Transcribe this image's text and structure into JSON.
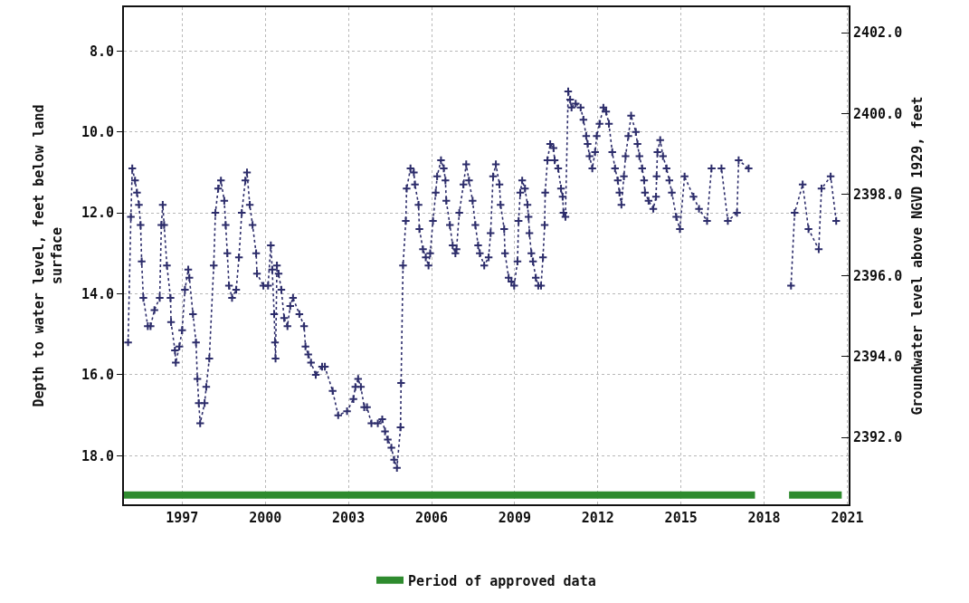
{
  "chart_data": {
    "type": "line",
    "xlabel": null,
    "ylabel": "Depth to water level, feet below land surface",
    "y2label": "Groundwater level above NGVD 1929, feet",
    "xlim": [
      1994.9,
      2021.05
    ],
    "xticks": [
      1997,
      2000,
      2003,
      2006,
      2009,
      2012,
      2015,
      2018,
      2021
    ],
    "ylim": [
      19.2,
      6.92
    ],
    "yticks": [
      {
        "value": 8,
        "label": "8.0"
      },
      {
        "value": 10,
        "label": "10.0"
      },
      {
        "value": 12,
        "label": "12.0"
      },
      {
        "value": 14,
        "label": "14.0"
      },
      {
        "value": 16,
        "label": "16.0"
      },
      {
        "value": 18,
        "label": "18.0"
      }
    ],
    "y2lim": [
      2390.35,
      2402.63
    ],
    "y2ticks": [
      {
        "value": 2392,
        "label": "2392.0"
      },
      {
        "value": 2394,
        "label": "2394.0"
      },
      {
        "value": 2396,
        "label": "2396.0"
      },
      {
        "value": 2398,
        "label": "2398.0"
      },
      {
        "value": 2400,
        "label": "2400.0"
      },
      {
        "value": 2402,
        "label": "2402.0"
      }
    ],
    "grid": true,
    "legend": "bottom",
    "series": [
      {
        "color": "#2d2d6b",
        "marker": "cross",
        "line_style": "dotted",
        "x": [
          1995.05,
          1995.15,
          1995.2,
          1995.3,
          1995.37,
          1995.44,
          1995.5,
          1995.54,
          1995.6,
          1995.76,
          1995.86,
          1996.0,
          1996.19,
          1996.25,
          1996.3,
          1996.35,
          1996.45,
          1996.58,
          1996.6,
          1996.74,
          1996.77,
          1996.9,
          1997.0,
          1997.1,
          1997.22,
          1997.26,
          1997.39,
          1997.5,
          1997.55,
          1997.6,
          1997.65,
          1997.81,
          1997.87,
          1997.98,
          1998.14,
          1998.2,
          1998.3,
          1998.4,
          1998.52,
          1998.57,
          1998.63,
          1998.69,
          1998.8,
          1998.95,
          1999.05,
          1999.15,
          1999.28,
          1999.34,
          1999.44,
          1999.54,
          1999.67,
          1999.7,
          1999.93,
          2000.1,
          2000.2,
          2000.25,
          2000.32,
          2000.35,
          2000.37,
          2000.42,
          2000.48,
          2000.58,
          2000.68,
          2000.8,
          2000.9,
          2001.0,
          2001.23,
          2001.4,
          2001.45,
          2001.55,
          2001.65,
          2001.82,
          2002.05,
          2002.15,
          2002.43,
          2002.63,
          2002.95,
          2003.18,
          2003.25,
          2003.35,
          2003.45,
          2003.57,
          2003.67,
          2003.83,
          2004.06,
          2004.22,
          2004.32,
          2004.42,
          2004.55,
          2004.65,
          2004.75,
          2004.88,
          2004.9,
          2004.97,
          2005.07,
          2005.1,
          2005.24,
          2005.36,
          2005.4,
          2005.53,
          2005.56,
          2005.69,
          2005.79,
          2005.89,
          2005.95,
          2006.05,
          2006.15,
          2006.2,
          2006.34,
          2006.44,
          2006.5,
          2006.53,
          2006.66,
          2006.76,
          2006.86,
          2006.9,
          2007.0,
          2007.15,
          2007.25,
          2007.35,
          2007.48,
          2007.58,
          2007.68,
          2007.74,
          2007.9,
          2008.06,
          2008.13,
          2008.22,
          2008.32,
          2008.45,
          2008.49,
          2008.62,
          2008.65,
          2008.78,
          2008.88,
          2008.98,
          2009.1,
          2009.14,
          2009.2,
          2009.27,
          2009.37,
          2009.46,
          2009.5,
          2009.53,
          2009.6,
          2009.66,
          2009.76,
          2009.85,
          2009.95,
          2010.02,
          2010.08,
          2010.1,
          2010.18,
          2010.28,
          2010.4,
          2010.44,
          2010.57,
          2010.67,
          2010.73,
          2010.76,
          2010.83,
          2010.93,
          2011.0,
          2011.05,
          2011.2,
          2011.38,
          2011.48,
          2011.58,
          2011.63,
          2011.7,
          2011.8,
          2011.9,
          2011.96,
          2012.06,
          2012.2,
          2012.3,
          2012.4,
          2012.52,
          2012.62,
          2012.72,
          2012.78,
          2012.85,
          2012.94,
          2013.0,
          2013.1,
          2013.2,
          2013.37,
          2013.43,
          2013.5,
          2013.6,
          2013.67,
          2013.7,
          2013.83,
          2014.0,
          2014.1,
          2014.12,
          2014.15,
          2014.25,
          2014.35,
          2014.48,
          2014.58,
          2014.67,
          2014.83,
          2014.96,
          2015.13,
          2015.45,
          2015.65,
          2015.94,
          2016.1,
          2016.46,
          2016.69,
          2017.02,
          2017.08,
          2017.44,
          2018.2,
          2018.97,
          2019.1,
          2019.39,
          2019.6,
          2019.97,
          2020.07,
          2020.4,
          2020.6
        ],
        "values": [
          15.2,
          12.1,
          10.9,
          11.2,
          11.5,
          11.8,
          12.3,
          13.2,
          14.1,
          14.8,
          14.8,
          14.4,
          14.1,
          12.3,
          11.8,
          12.3,
          13.3,
          14.1,
          14.7,
          15.4,
          15.7,
          15.3,
          14.9,
          13.9,
          13.4,
          13.6,
          14.5,
          15.2,
          16.1,
          16.7,
          17.2,
          16.7,
          16.3,
          15.6,
          13.3,
          12.0,
          11.4,
          11.2,
          11.7,
          12.3,
          13.0,
          13.8,
          14.1,
          13.9,
          13.1,
          12.0,
          11.2,
          11.0,
          11.8,
          12.3,
          13.0,
          13.5,
          13.8,
          13.8,
          12.8,
          13.4,
          14.5,
          15.2,
          15.6,
          13.3,
          13.5,
          13.9,
          14.6,
          14.8,
          14.3,
          14.1,
          14.5,
          14.8,
          15.3,
          15.5,
          15.7,
          16.0,
          15.8,
          15.8,
          16.4,
          17.0,
          16.9,
          16.6,
          16.3,
          16.1,
          16.3,
          16.8,
          16.8,
          17.2,
          17.2,
          17.1,
          17.4,
          17.6,
          17.8,
          18.1,
          18.3,
          17.3,
          16.2,
          13.3,
          12.2,
          11.4,
          10.9,
          11.0,
          11.3,
          11.8,
          12.4,
          12.9,
          13.1,
          13.3,
          13.0,
          12.2,
          11.5,
          11.1,
          10.7,
          10.9,
          11.2,
          11.7,
          12.3,
          12.8,
          13.0,
          12.9,
          12.0,
          11.3,
          10.8,
          11.2,
          11.7,
          12.3,
          12.8,
          13.0,
          13.3,
          13.1,
          12.5,
          11.1,
          10.8,
          11.3,
          11.8,
          12.4,
          13.0,
          13.6,
          13.7,
          13.8,
          13.2,
          12.2,
          11.5,
          11.2,
          11.4,
          11.8,
          12.1,
          12.5,
          13.0,
          13.2,
          13.6,
          13.8,
          13.8,
          13.1,
          12.3,
          11.5,
          10.7,
          10.3,
          10.4,
          10.7,
          10.9,
          11.4,
          11.6,
          12.0,
          12.1,
          9.0,
          9.2,
          9.4,
          9.3,
          9.4,
          9.7,
          10.1,
          10.3,
          10.6,
          10.9,
          10.5,
          10.1,
          9.8,
          9.4,
          9.5,
          9.8,
          10.5,
          10.9,
          11.2,
          11.5,
          11.8,
          11.1,
          10.6,
          10.1,
          9.6,
          10.0,
          10.3,
          10.6,
          10.9,
          11.2,
          11.5,
          11.7,
          11.9,
          11.6,
          11.1,
          10.5,
          10.2,
          10.6,
          10.9,
          11.2,
          11.5,
          12.1,
          12.4,
          11.1,
          11.6,
          11.9,
          12.2,
          10.9,
          10.9,
          12.2,
          12.0,
          10.7,
          10.9,
          null,
          13.8,
          12.0,
          11.3,
          12.4,
          12.9,
          11.4,
          11.1,
          12.2
        ]
      },
      {
        "name": "Period of approved data",
        "color": "#2e8b2e",
        "marker": "none",
        "line_style": "solid",
        "x": [
          1994.9,
          2017.67,
          2018.3,
          2018.9,
          2020.8
        ],
        "values": [
          18.97,
          18.97,
          null,
          18.97,
          18.97
        ]
      }
    ]
  }
}
